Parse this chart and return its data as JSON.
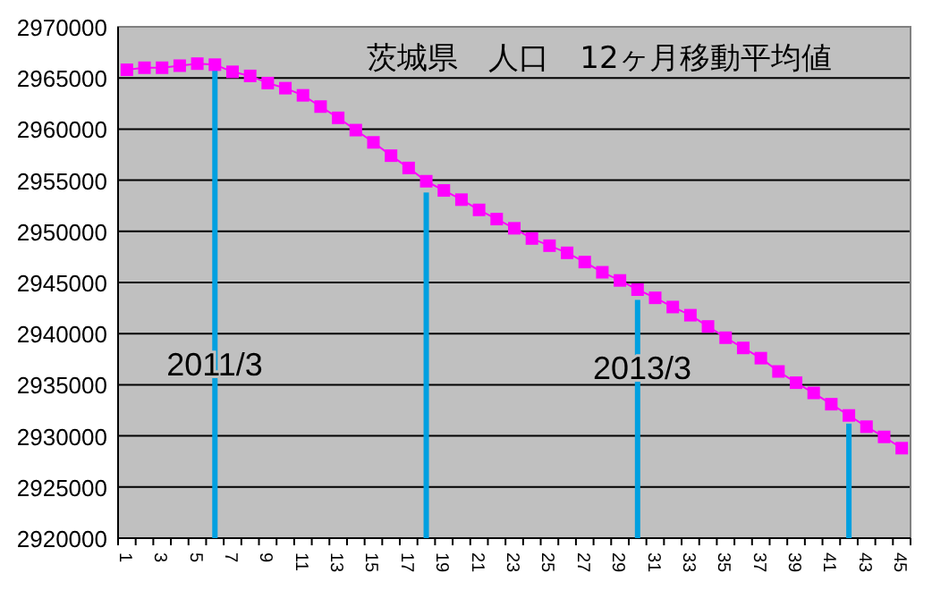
{
  "chart_data": {
    "type": "line",
    "title": "茨城県　人口　12ヶ月移動平均値",
    "categories": [
      "1",
      null,
      "3",
      null,
      "5",
      null,
      "7",
      null,
      "9",
      null,
      "11",
      null,
      "13",
      null,
      "15",
      null,
      "17",
      null,
      "19",
      null,
      "21",
      null,
      "23",
      null,
      "25",
      null,
      "27",
      null,
      "29",
      null,
      "31",
      null,
      "33",
      null,
      "35",
      null,
      "37",
      null,
      "39",
      null,
      "41",
      null,
      "43",
      null,
      "45"
    ],
    "series": [
      {
        "type": "bar",
        "color": "#00a0e0",
        "values": [
          null,
          null,
          null,
          null,
          null,
          2966000,
          null,
          null,
          null,
          null,
          null,
          null,
          null,
          null,
          null,
          null,
          null,
          2953800,
          null,
          null,
          null,
          null,
          null,
          null,
          null,
          null,
          null,
          null,
          null,
          2943300,
          null,
          null,
          null,
          null,
          null,
          null,
          null,
          null,
          null,
          null,
          null,
          2931200,
          null,
          null,
          null
        ]
      },
      {
        "color": "#ff00ff",
        "marker": "square",
        "values": [
          2965800,
          2966000,
          2966000,
          2966200,
          2966400,
          2966300,
          2965600,
          2965200,
          2964500,
          2964000,
          2963300,
          2962200,
          2961100,
          2959900,
          2958700,
          2957400,
          2956200,
          2954900,
          2954000,
          2953100,
          2952100,
          2951200,
          2950300,
          2949300,
          2948600,
          2947900,
          2947000,
          2946000,
          2945200,
          2944300,
          2943500,
          2942600,
          2941800,
          2940700,
          2939600,
          2938600,
          2937600,
          2936300,
          2935200,
          2934200,
          2933100,
          2932000,
          2930900,
          2929900,
          2928800
        ]
      }
    ],
    "ylim": [
      2920000,
      2970000
    ],
    "yticks": [
      2920000,
      2925000,
      2930000,
      2935000,
      2940000,
      2945000,
      2950000,
      2955000,
      2960000,
      2965000,
      2970000
    ],
    "grid": "y",
    "annotations": [
      "2011/3",
      "2013/3"
    ]
  }
}
